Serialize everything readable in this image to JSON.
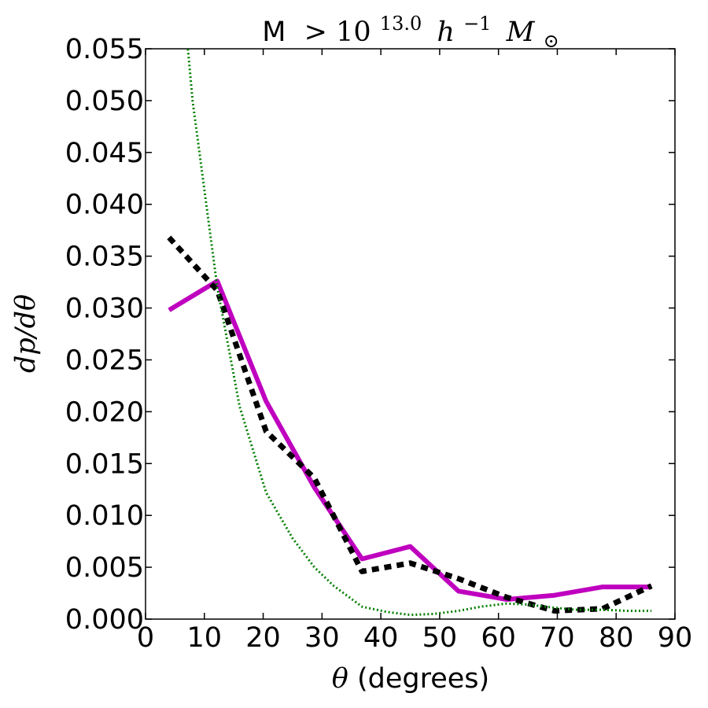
{
  "chart_data": {
    "type": "line",
    "title": {
      "prefix": "M",
      "gt": ">",
      "base": "10",
      "exponent": "13.0",
      "h": "h",
      "h_exp": "−1",
      "mass": "M",
      "mass_sub": "⊙"
    },
    "xlabel": {
      "symbol": "θ",
      "text": " (degrees)"
    },
    "ylabel": "dp/dθ",
    "xlim": [
      0,
      90
    ],
    "ylim": [
      0,
      0.055
    ],
    "xticks": [
      0,
      10,
      20,
      30,
      40,
      50,
      60,
      70,
      80,
      90
    ],
    "xtick_labels": [
      "0",
      "10",
      "20",
      "30",
      "40",
      "50",
      "60",
      "70",
      "80",
      "90"
    ],
    "yticks": [
      0,
      0.005,
      0.01,
      0.015,
      0.02,
      0.025,
      0.03,
      0.035,
      0.04,
      0.045,
      0.05,
      0.055
    ],
    "ytick_labels": [
      "0.000",
      "0.005",
      "0.010",
      "0.015",
      "0.020",
      "0.025",
      "0.030",
      "0.035",
      "0.040",
      "0.045",
      "0.050",
      "0.055"
    ],
    "grid": false,
    "series": [
      {
        "style": "solid",
        "color": "#bf00bf",
        "x": [
          4,
          12.2,
          20.5,
          28.7,
          36.8,
          45,
          53.2,
          61.4,
          69.5,
          77.7,
          86
        ],
        "y": [
          0.0298,
          0.0326,
          0.021,
          0.0127,
          0.0058,
          0.007,
          0.0027,
          0.0019,
          0.0023,
          0.0031,
          0.0031
        ]
      },
      {
        "style": "dashed",
        "color": "#000000",
        "x": [
          4,
          12.2,
          20.5,
          28.7,
          36.8,
          45,
          53.2,
          61.4,
          69.5,
          77.7,
          86
        ],
        "y": [
          0.0368,
          0.0317,
          0.0181,
          0.0136,
          0.0046,
          0.0054,
          0.0039,
          0.0021,
          0.0008,
          0.001,
          0.0032
        ]
      },
      {
        "style": "dotted",
        "color": "#007f00",
        "x": [
          4,
          8,
          12.2,
          16,
          20.5,
          25,
          28.7,
          32,
          36.8,
          41,
          45,
          49,
          53.2,
          57,
          61.4,
          65,
          69.5,
          73,
          77.7,
          82,
          86
        ],
        "y": [
          0.075,
          0.05,
          0.032,
          0.0205,
          0.0122,
          0.0078,
          0.005,
          0.0032,
          0.0012,
          0.0007,
          0.0004,
          0.0005,
          0.0008,
          0.0012,
          0.0015,
          0.0014,
          0.0011,
          0.0009,
          0.0009,
          0.0008,
          0.0008
        ]
      }
    ]
  }
}
